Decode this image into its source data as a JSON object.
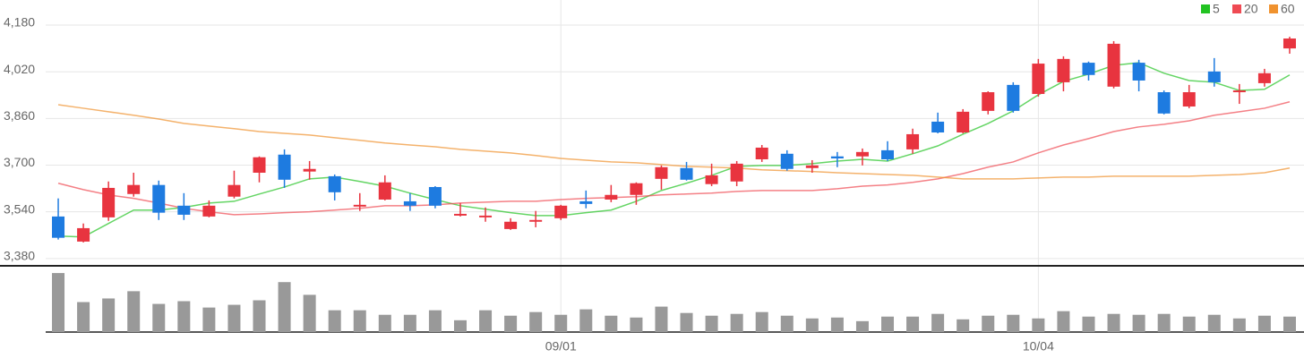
{
  "chart_data": {
    "type": "candlestick",
    "categories": [
      null,
      null,
      null,
      null,
      null,
      null,
      null,
      null,
      null,
      null,
      null,
      null,
      null,
      null,
      null,
      null,
      null,
      null,
      null,
      null,
      "09/01",
      null,
      null,
      null,
      null,
      null,
      null,
      null,
      null,
      null,
      null,
      null,
      null,
      null,
      null,
      null,
      null,
      null,
      null,
      "10/04",
      null,
      null,
      null,
      null,
      null,
      null,
      null,
      null,
      null,
      null
    ],
    "open": [
      3524,
      3438,
      3521,
      3601,
      3632,
      3561,
      3524,
      3592,
      3674,
      3736,
      3678,
      3662,
      3558,
      3582,
      3576,
      3625,
      3527,
      3521,
      3481,
      3506,
      3518,
      3576,
      3582,
      3598,
      3653,
      3690,
      3635,
      3644,
      3720,
      3739,
      3690,
      3730,
      3730,
      3751,
      3754,
      3849,
      3812,
      3886,
      3975,
      3944,
      3984,
      4051,
      3969,
      4051,
      3950,
      3901,
      4021,
      3950,
      3981,
      4100
    ],
    "high": [
      3586,
      3500,
      3644,
      3674,
      3647,
      3604,
      3579,
      3681,
      3730,
      3754,
      3714,
      3668,
      3604,
      3665,
      3604,
      3628,
      3570,
      3555,
      3518,
      3543,
      3564,
      3613,
      3632,
      3641,
      3699,
      3711,
      3705,
      3714,
      3769,
      3751,
      3717,
      3745,
      3757,
      3782,
      3825,
      3880,
      3892,
      3953,
      3984,
      4064,
      4073,
      4055,
      4125,
      4061,
      3956,
      3975,
      4067,
      3978,
      4030,
      4140
    ],
    "low": [
      3445,
      3435,
      3509,
      3592,
      3512,
      3512,
      3521,
      3586,
      3641,
      3622,
      3650,
      3579,
      3543,
      3579,
      3543,
      3552,
      3524,
      3506,
      3478,
      3487,
      3512,
      3552,
      3573,
      3564,
      3616,
      3647,
      3628,
      3628,
      3711,
      3681,
      3674,
      3693,
      3699,
      3714,
      3739,
      3809,
      3809,
      3874,
      3880,
      3935,
      3953,
      3990,
      3963,
      3953,
      3874,
      3895,
      3969,
      3910,
      3969,
      4082
    ],
    "close": [
      3451,
      3484,
      3622,
      3632,
      3537,
      3530,
      3561,
      3632,
      3727,
      3650,
      3687,
      3607,
      3564,
      3641,
      3561,
      3561,
      3533,
      3527,
      3506,
      3512,
      3561,
      3567,
      3598,
      3638,
      3693,
      3650,
      3665,
      3705,
      3760,
      3687,
      3699,
      3723,
      3745,
      3720,
      3806,
      3812,
      3883,
      3950,
      3886,
      4048,
      4064,
      4009,
      4116,
      3990,
      3877,
      3950,
      3984,
      3956,
      4015,
      4134
    ],
    "up_color": "#e8343f",
    "down_color": "#1e7be0",
    "series": [
      {
        "name": "5",
        "color": "#22c322",
        "values": [
          3457,
          3454,
          3500,
          3546,
          3546,
          3555,
          3570,
          3576,
          3601,
          3625,
          3653,
          3659,
          3644,
          3628,
          3604,
          3582,
          3561,
          3549,
          3537,
          3527,
          3527,
          3537,
          3546,
          3576,
          3613,
          3638,
          3665,
          3696,
          3699,
          3699,
          3705,
          3714,
          3720,
          3714,
          3739,
          3766,
          3806,
          3843,
          3886,
          3941,
          3987,
          4012,
          4042,
          4051,
          4015,
          3990,
          3984,
          3956,
          3960,
          4009
        ]
      },
      {
        "name": "20",
        "color": "#ef4a53",
        "values": [
          3638,
          3616,
          3598,
          3586,
          3570,
          3552,
          3540,
          3530,
          3533,
          3537,
          3540,
          3546,
          3552,
          3561,
          3561,
          3564,
          3570,
          3573,
          3576,
          3576,
          3582,
          3586,
          3589,
          3592,
          3598,
          3601,
          3604,
          3610,
          3613,
          3613,
          3613,
          3619,
          3628,
          3632,
          3641,
          3653,
          3671,
          3693,
          3711,
          3742,
          3769,
          3791,
          3815,
          3831,
          3840,
          3852,
          3871,
          3883,
          3895,
          3917
        ]
      },
      {
        "name": "60",
        "color": "#f0922e",
        "values": [
          3907,
          3895,
          3883,
          3871,
          3858,
          3843,
          3834,
          3825,
          3815,
          3809,
          3803,
          3794,
          3785,
          3776,
          3769,
          3763,
          3754,
          3748,
          3742,
          3733,
          3723,
          3717,
          3711,
          3708,
          3702,
          3696,
          3693,
          3690,
          3684,
          3681,
          3678,
          3674,
          3671,
          3668,
          3665,
          3659,
          3653,
          3653,
          3653,
          3656,
          3659,
          3659,
          3662,
          3662,
          3662,
          3662,
          3665,
          3668,
          3674,
          3690
        ]
      }
    ],
    "ylim": [
      3358,
      4266
    ],
    "yticks": [
      {
        "value": 3380,
        "label": "3,380"
      },
      {
        "value": 3540,
        "label": "3,540"
      },
      {
        "value": 3700,
        "label": "3,700"
      },
      {
        "value": 3860,
        "label": "3,860"
      },
      {
        "value": 4020,
        "label": "4,020"
      },
      {
        "value": 4180,
        "label": "4,180"
      }
    ],
    "grid": true,
    "legend": "top-right",
    "volume": {
      "color": "#999999",
      "ylim": [
        0,
        70
      ],
      "values": [
        65,
        33,
        37,
        45,
        31,
        34,
        27,
        30,
        35,
        55,
        41,
        24,
        24,
        19,
        19,
        24,
        13,
        24,
        18,
        22,
        19,
        25,
        18,
        16,
        28,
        21,
        18,
        20,
        22,
        18,
        15,
        16,
        12,
        17,
        17,
        20,
        14,
        18,
        19,
        15,
        23,
        17,
        20,
        19,
        20,
        17,
        19,
        15,
        18,
        17
      ]
    }
  }
}
